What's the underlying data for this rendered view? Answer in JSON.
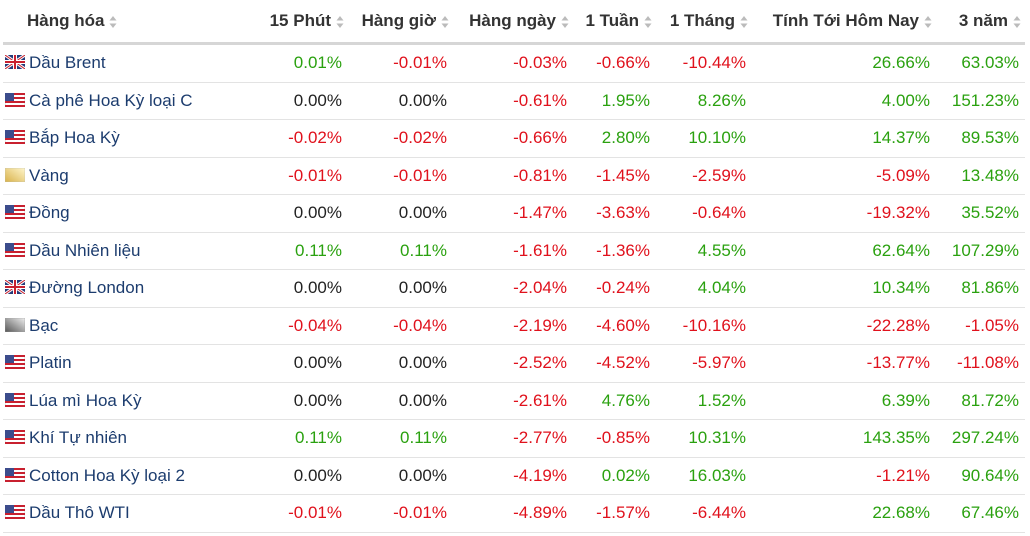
{
  "table": {
    "columns": [
      "Hàng hóa",
      "15 Phút",
      "Hàng giờ",
      "Hàng ngày",
      "1 Tuần",
      "1 Tháng",
      "Tính Tới Hôm Nay",
      "3 năm"
    ],
    "rows": [
      [
        "Dầu Brent",
        "0.01%",
        "-0.01%",
        "-0.03%",
        "-0.66%",
        "-10.44%",
        "26.66%",
        "63.03%"
      ],
      [
        "Cà phê Hoa Kỳ loại C",
        "0.00%",
        "0.00%",
        "-0.61%",
        "1.95%",
        "8.26%",
        "4.00%",
        "151.23%"
      ],
      [
        "Bắp Hoa Kỳ",
        "-0.02%",
        "-0.02%",
        "-0.66%",
        "2.80%",
        "10.10%",
        "14.37%",
        "89.53%"
      ],
      [
        "Vàng",
        "-0.01%",
        "-0.01%",
        "-0.81%",
        "-1.45%",
        "-2.59%",
        "-5.09%",
        "13.48%"
      ],
      [
        "Đồng",
        "0.00%",
        "0.00%",
        "-1.47%",
        "-3.63%",
        "-0.64%",
        "-19.32%",
        "35.52%"
      ],
      [
        "Dầu Nhiên liệu",
        "0.11%",
        "0.11%",
        "-1.61%",
        "-1.36%",
        "4.55%",
        "62.64%",
        "107.29%"
      ],
      [
        "Đường London",
        "0.00%",
        "0.00%",
        "-2.04%",
        "-0.24%",
        "4.04%",
        "10.34%",
        "81.86%"
      ],
      [
        "Bạc",
        "-0.04%",
        "-0.04%",
        "-2.19%",
        "-4.60%",
        "-10.16%",
        "-22.28%",
        "-1.05%"
      ],
      [
        "Platin",
        "0.00%",
        "0.00%",
        "-2.52%",
        "-4.52%",
        "-5.97%",
        "-13.77%",
        "-11.08%"
      ],
      [
        "Lúa mì Hoa Kỳ",
        "0.00%",
        "0.00%",
        "-2.61%",
        "4.76%",
        "1.52%",
        "6.39%",
        "81.72%"
      ],
      [
        "Khí Tự nhiên",
        "0.11%",
        "0.11%",
        "-2.77%",
        "-0.85%",
        "10.31%",
        "143.35%",
        "297.24%"
      ],
      [
        "Cotton Hoa Kỳ loại 2",
        "0.00%",
        "0.00%",
        "-4.19%",
        "0.02%",
        "16.03%",
        "-1.21%",
        "90.64%"
      ],
      [
        "Dầu Thô WTI",
        "-0.01%",
        "-0.01%",
        "-4.89%",
        "-1.57%",
        "-6.44%",
        "22.68%",
        "67.46%"
      ]
    ]
  }
}
